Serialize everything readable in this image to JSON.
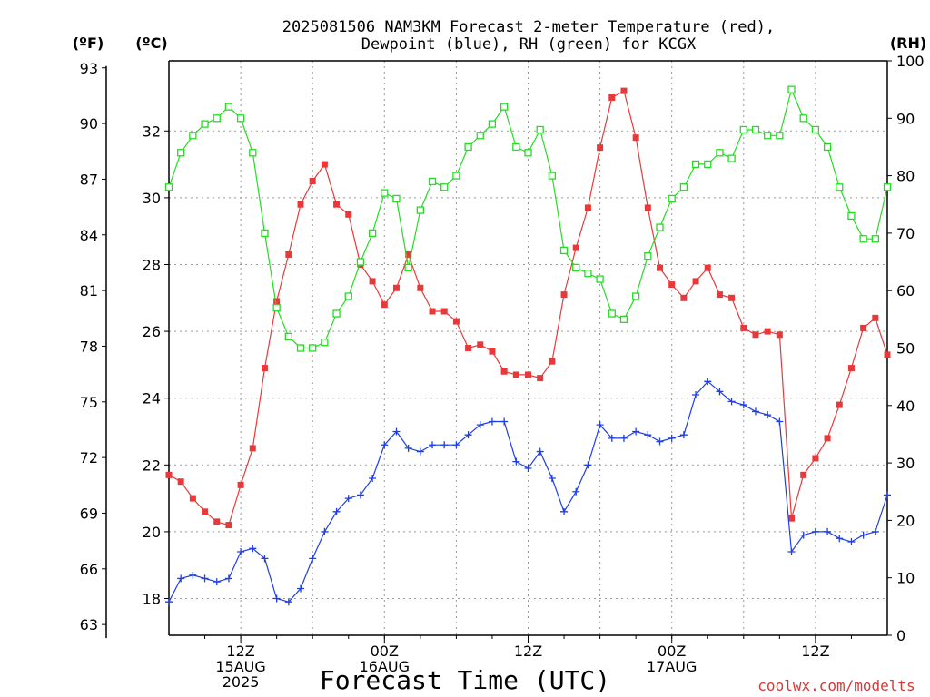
{
  "chart_data": {
    "type": "line",
    "title_line1": "2025081506 NAM3KM Forecast 2-meter Temperature (red),",
    "title_line2": "Dewpoint (blue), RH (green) for KCGX",
    "xlabel": "Forecast Time (UTC)",
    "watermark": "coolwx.com/modelts",
    "axis_unit_f": "(ºF)",
    "axis_unit_c": "(ºC)",
    "axis_unit_rh": "(RH)",
    "xlim_hours": [
      0,
      60
    ],
    "y_left_c_range": [
      16.9,
      34.1
    ],
    "y_right_rh_range": [
      0,
      100
    ],
    "grid": true,
    "x_ticks": [
      {
        "hour": 6,
        "lines": [
          "12Z",
          "15AUG",
          "2025"
        ]
      },
      {
        "hour": 18,
        "lines": [
          "00Z",
          "16AUG"
        ]
      },
      {
        "hour": 30,
        "lines": [
          "12Z"
        ]
      },
      {
        "hour": 42,
        "lines": [
          "00Z",
          "17AUG"
        ]
      },
      {
        "hour": 54,
        "lines": [
          "12Z"
        ]
      }
    ],
    "y_ticks_f": [
      "63",
      "66",
      "69",
      "72",
      "75",
      "78",
      "81",
      "84",
      "87",
      "90",
      "93"
    ],
    "y_ticks_c": [
      "18",
      "20",
      "22",
      "24",
      "26",
      "28",
      "30",
      "32"
    ],
    "y_ticks_rh": [
      "0",
      "10",
      "20",
      "30",
      "40",
      "50",
      "60",
      "70",
      "80",
      "90",
      "100"
    ],
    "colors": {
      "temperature": "#e8393a",
      "dewpoint": "#1f3fe6",
      "rh": "#22dd22",
      "grid": "#9a9a9a",
      "watermark": "#d43a3a"
    },
    "hours": [
      0,
      1,
      2,
      3,
      4,
      5,
      6,
      7,
      8,
      9,
      10,
      11,
      12,
      13,
      14,
      15,
      16,
      17,
      18,
      19,
      20,
      21,
      22,
      23,
      24,
      25,
      26,
      27,
      28,
      29,
      30,
      31,
      32,
      33,
      34,
      35,
      36,
      37,
      38,
      39,
      40,
      41,
      42,
      43,
      44,
      45,
      46,
      47,
      48,
      49,
      50,
      51,
      52,
      53,
      54,
      55,
      56,
      57,
      58,
      59,
      60
    ],
    "series": [
      {
        "name": "2-meter Temperature",
        "axis": "C",
        "values": [
          21.7,
          21.5,
          21.0,
          20.6,
          20.3,
          20.2,
          21.4,
          22.5,
          24.9,
          26.9,
          28.3,
          29.8,
          30.5,
          31.0,
          29.8,
          29.5,
          28.0,
          27.5,
          26.8,
          27.3,
          28.3,
          27.3,
          26.6,
          26.6,
          26.3,
          25.5,
          25.6,
          25.4,
          24.8,
          24.7,
          24.7,
          24.6,
          25.1,
          27.1,
          28.5,
          29.7,
          31.5,
          33.0,
          33.2,
          31.8,
          29.7,
          27.9,
          27.4,
          27.0,
          27.5,
          27.9,
          27.1,
          27.0,
          26.1,
          25.9,
          26.0,
          25.9,
          20.4,
          21.7,
          22.2,
          22.8,
          23.8,
          24.9,
          26.1,
          26.4,
          25.3
        ]
      },
      {
        "name": "Dewpoint",
        "axis": "C",
        "values": [
          17.9,
          18.6,
          18.7,
          18.6,
          18.5,
          18.6,
          19.4,
          19.5,
          19.2,
          18.0,
          17.9,
          18.3,
          19.2,
          20.0,
          20.6,
          21.0,
          21.1,
          21.6,
          22.6,
          23.0,
          22.5,
          22.4,
          22.6,
          22.6,
          22.6,
          22.9,
          23.2,
          23.3,
          23.3,
          22.1,
          21.9,
          22.4,
          21.6,
          20.6,
          21.2,
          22.0,
          23.2,
          22.8,
          22.8,
          23.0,
          22.9,
          22.7,
          22.8,
          22.9,
          24.1,
          24.5,
          24.2,
          23.9,
          23.8,
          23.6,
          23.5,
          23.3,
          19.4,
          19.9,
          20.0,
          20.0,
          19.8,
          19.7,
          19.9,
          20.0,
          21.1
        ]
      },
      {
        "name": "RH",
        "axis": "RH",
        "values": [
          78,
          84,
          87,
          89,
          90,
          92,
          90,
          84,
          70,
          57,
          52,
          50,
          50,
          51,
          56,
          59,
          65,
          70,
          77,
          76,
          64,
          74,
          79,
          78,
          80,
          85,
          87,
          89,
          92,
          85,
          84,
          88,
          80,
          67,
          64,
          63,
          62,
          56,
          55,
          59,
          66,
          71,
          76,
          78,
          82,
          82,
          84,
          83,
          88,
          88,
          87,
          87,
          95,
          90,
          88,
          85,
          78,
          73,
          69,
          69,
          78
        ]
      }
    ]
  }
}
